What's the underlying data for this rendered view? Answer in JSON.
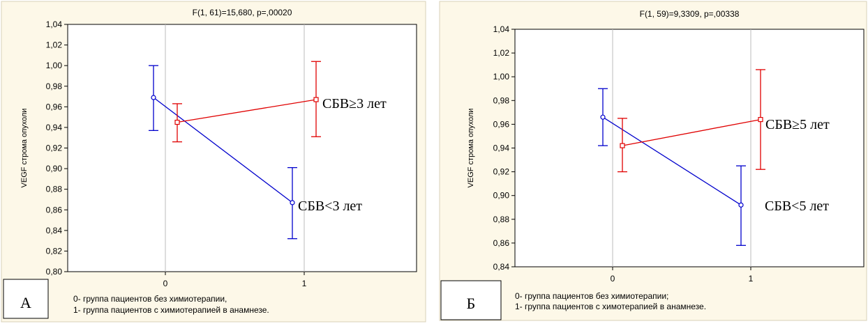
{
  "colors": {
    "background": "#fdf8e8",
    "series_a": "#0000cc",
    "series_b": "#e00000",
    "grid": "#bbbbbb",
    "axis": "#000000"
  },
  "chart_data": [
    {
      "type": "line",
      "panel_letter": "А",
      "title": "F(1, 61)=15,680, p=,00020",
      "ylabel": "VEGF строма опухоли",
      "xlabel": "",
      "categories": [
        "0",
        "1"
      ],
      "ylim": [
        0.8,
        1.04
      ],
      "yticks": [
        "0,80",
        "0,82",
        "0,84",
        "0,86",
        "0,88",
        "0,90",
        "0,92",
        "0,94",
        "0,96",
        "0,98",
        "1,00",
        "1,02",
        "1,04"
      ],
      "grid": true,
      "series": [
        {
          "label": "СБВ<3 лет",
          "marker": "circle",
          "color": "#0000cc",
          "means": [
            0.969,
            0.867
          ],
          "lower": [
            0.937,
            0.832
          ],
          "upper": [
            1.0,
            0.901
          ]
        },
        {
          "label": "СБВ≥3 лет",
          "marker": "square",
          "color": "#e00000",
          "means": [
            0.945,
            0.967
          ],
          "lower": [
            0.926,
            0.931
          ],
          "upper": [
            0.963,
            1.004
          ]
        }
      ],
      "legend_lines": [
        "0- группа пациентов без химиотерапии,",
        "1- группа пациентов с химиотерапией в анамнезе."
      ]
    },
    {
      "type": "line",
      "panel_letter": "Б",
      "title": "F(1, 59)=9,3309, p=,00338",
      "ylabel": "VEGF строма опухоли",
      "xlabel": "",
      "categories": [
        "0",
        "1"
      ],
      "ylim": [
        0.84,
        1.04
      ],
      "yticks": [
        "0,84",
        "0,86",
        "0,88",
        "0,90",
        "0,92",
        "0,94",
        "0,96",
        "0,98",
        "1,00",
        "1,02",
        "1,04"
      ],
      "grid": true,
      "series": [
        {
          "label": "СБВ<5 лет",
          "marker": "circle",
          "color": "#0000cc",
          "means": [
            0.966,
            0.892
          ],
          "lower": [
            0.942,
            0.858
          ],
          "upper": [
            0.99,
            0.925
          ]
        },
        {
          "label": "СБВ≥5 лет",
          "marker": "square",
          "color": "#e00000",
          "means": [
            0.942,
            0.964
          ],
          "lower": [
            0.92,
            0.922
          ],
          "upper": [
            0.965,
            1.006
          ]
        }
      ],
      "legend_lines": [
        "0- группа пациентов без химиотерапии;",
        "1- группа пациентов с химотерапией в анамнезе."
      ]
    }
  ]
}
